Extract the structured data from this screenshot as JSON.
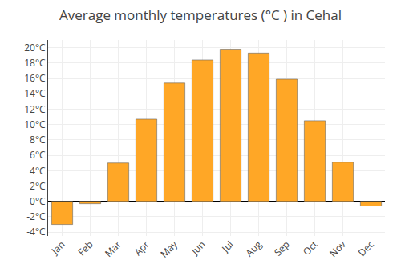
{
  "chart_data": {
    "type": "bar",
    "title": "Average monthly temperatures (°C ) in Cehal",
    "categories": [
      "Jan",
      "Feb",
      "Mar",
      "Apr",
      "May",
      "Jun",
      "Jul",
      "Aug",
      "Sep",
      "Oct",
      "Nov",
      "Dec"
    ],
    "values": [
      -3.0,
      -0.3,
      5.0,
      10.7,
      15.4,
      18.4,
      19.8,
      19.3,
      15.9,
      10.5,
      5.1,
      -0.6
    ],
    "color": "#FFA726",
    "ylim": [
      -4.5,
      21
    ],
    "yticks": [
      {
        "value": -4,
        "label": "-4°C"
      },
      {
        "value": -2,
        "label": "-2°C"
      },
      {
        "value": 0,
        "label": "0°C"
      },
      {
        "value": 2,
        "label": "2°C"
      },
      {
        "value": 4,
        "label": "4°C"
      },
      {
        "value": 6,
        "label": "6°C"
      },
      {
        "value": 8,
        "label": "8°C"
      },
      {
        "value": 10,
        "label": "10°C"
      },
      {
        "value": 12,
        "label": "12°C"
      },
      {
        "value": 14,
        "label": "14°C"
      },
      {
        "value": 16,
        "label": "16°C"
      },
      {
        "value": 18,
        "label": "18°C"
      },
      {
        "value": 20,
        "label": "20°C"
      }
    ],
    "grid": true
  }
}
